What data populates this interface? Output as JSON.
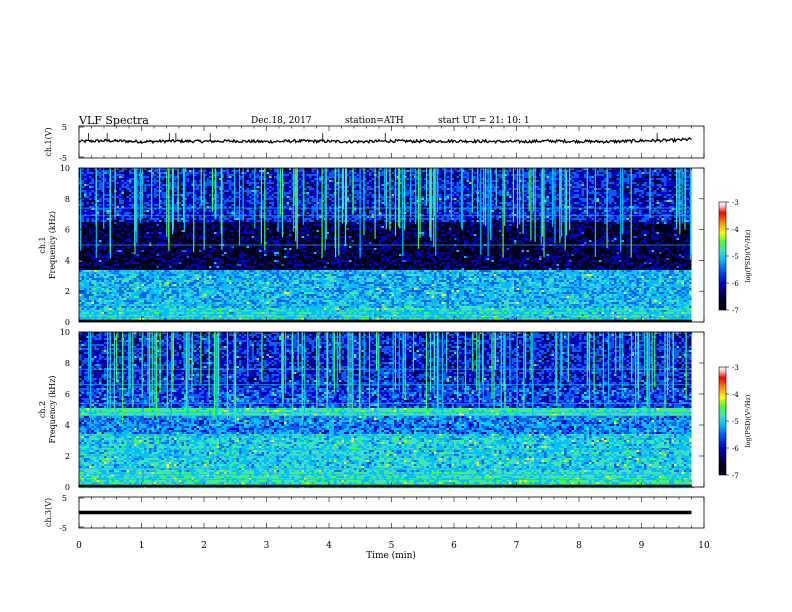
{
  "header": {
    "title": "VLF  Spectra",
    "date": "Dec.18, 2017",
    "station": "station=ATH",
    "start": "start  UT  =    21: 10: 1"
  },
  "chart_data": [
    {
      "type": "line",
      "panel": "ch1-waveform",
      "ylabel": "ch.1(V)",
      "ylim": [
        -5,
        5
      ],
      "xlim": [
        0,
        10
      ],
      "yticks": [
        "5",
        "-5"
      ],
      "x": [
        0,
        0.5,
        1,
        1.5,
        2,
        2.5,
        3,
        3.5,
        4,
        4.5,
        5,
        5.5,
        6,
        6.5,
        7,
        7.5,
        8,
        8.5,
        9,
        9.5,
        9.8
      ],
      "y": [
        0.2,
        0.4,
        0.1,
        0.3,
        0.2,
        0.3,
        0.1,
        0.3,
        0.2,
        0.1,
        0.3,
        0.2,
        0.3,
        0.2,
        0.1,
        0.3,
        0.2,
        0.1,
        0.4,
        0.5,
        0.9
      ],
      "spikes_x": [
        0.15,
        0.45,
        1.45,
        1.55,
        2.1,
        3.9,
        4.9,
        9.25
      ]
    },
    {
      "type": "heatmap",
      "panel": "ch1-spectrogram",
      "ylabel_line1": "ch.1",
      "ylabel_line2": "Frequency (kHz)",
      "xlim": [
        0,
        10
      ],
      "ylim": [
        0,
        10
      ],
      "yticks": [
        "0",
        "2",
        "4",
        "6",
        "8",
        "10"
      ],
      "data_xmax": 9.8,
      "colorbar": {
        "label": "log(PSD)(V²/Hz)",
        "ticks": [
          "-3",
          "-4",
          "-5",
          "-6",
          "-7"
        ],
        "range": [
          -7,
          -3
        ]
      }
    },
    {
      "type": "heatmap",
      "panel": "ch2-spectrogram",
      "ylabel_line1": "ch.2",
      "ylabel_line2": "Frequency (kHz)",
      "xlim": [
        0,
        10
      ],
      "ylim": [
        0,
        10
      ],
      "yticks": [
        "0",
        "2",
        "4",
        "6",
        "8",
        "10"
      ],
      "data_xmax": 9.8,
      "colorbar": {
        "label": "log(PSD)(V²/Hz)",
        "ticks": [
          "-3",
          "-4",
          "-5",
          "-6",
          "-7"
        ],
        "range": [
          -7,
          -3
        ]
      }
    },
    {
      "type": "line",
      "panel": "ch3-waveform",
      "ylabel": "ch.3(V)",
      "ylim": [
        -5,
        5
      ],
      "xlim": [
        0,
        10
      ],
      "yticks": [
        "5",
        "-5"
      ],
      "x": [
        0,
        9.8
      ],
      "y": [
        0,
        0
      ]
    }
  ],
  "xaxis": {
    "label": "Time  (min)",
    "ticks": [
      "0",
      "1",
      "2",
      "3",
      "4",
      "5",
      "6",
      "7",
      "8",
      "9",
      "10"
    ]
  },
  "colors": {
    "colormap": [
      "#000000",
      "#00003a",
      "#0000c8",
      "#0060ff",
      "#00c0ff",
      "#40e0c0",
      "#40ff40",
      "#ffff00",
      "#ff8000",
      "#ff0000",
      "#ffc0c0",
      "#ffffff"
    ]
  }
}
